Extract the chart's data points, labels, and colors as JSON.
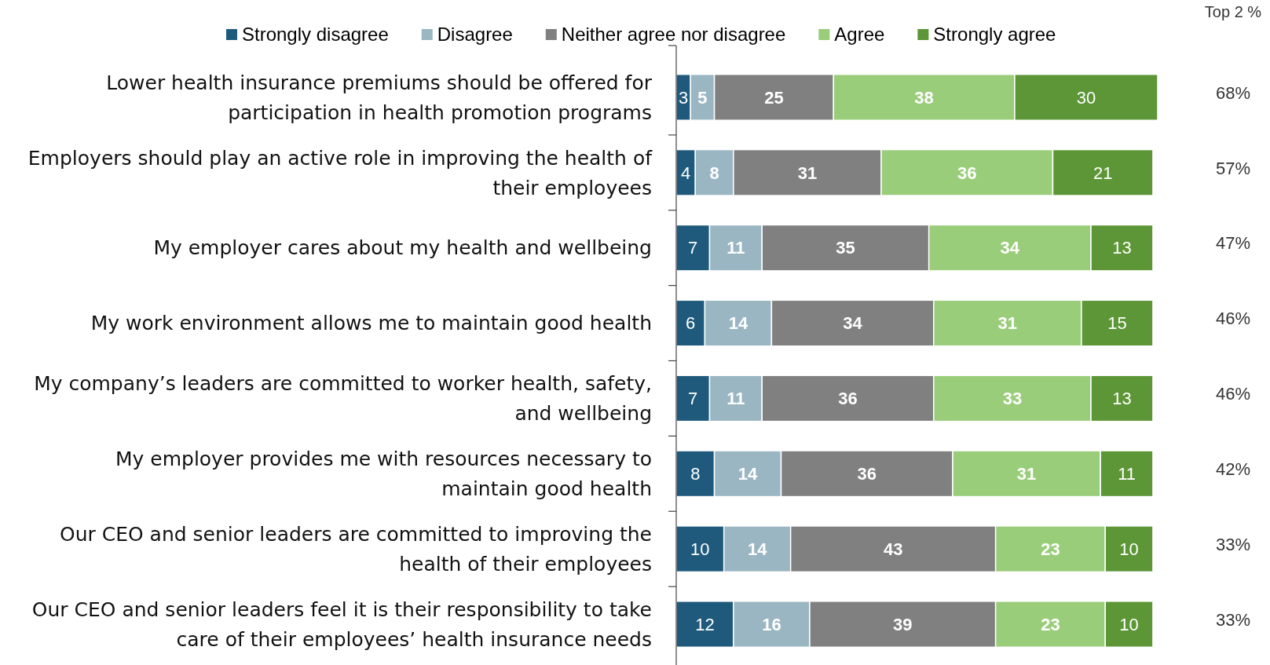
{
  "chart_data": {
    "type": "bar",
    "orientation": "horizontal",
    "stacked": true,
    "data_labels": true,
    "legend": "top",
    "categories": [
      "Lower health insurance premiums should be offered for participation in health promotion programs",
      "Employers should play an active role in improving the health of their employees",
      "My employer cares about my health and wellbeing",
      "My work environment allows me to maintain good health",
      "My company’s leaders are committed to worker health, safety, and wellbeing",
      "My employer provides me with resources necessary to maintain good health",
      "Our CEO and senior leaders are committed to improving the health of their employees",
      "Our CEO and senior leaders feel it is their responsibility to take care of their employees’ health insurance needs"
    ],
    "series": [
      {
        "name": "Strongly disagree",
        "color": "#1f5a7c",
        "values": [
          3,
          4,
          7,
          6,
          7,
          8,
          10,
          12
        ]
      },
      {
        "name": "Disagree",
        "color": "#9ab6c3",
        "values": [
          5,
          8,
          11,
          14,
          11,
          14,
          14,
          16
        ]
      },
      {
        "name": "Neither agree nor disagree",
        "color": "#808080",
        "values": [
          25,
          31,
          35,
          34,
          36,
          36,
          43,
          39
        ]
      },
      {
        "name": "Agree",
        "color": "#9acd7a",
        "values": [
          38,
          36,
          34,
          31,
          33,
          31,
          23,
          23
        ]
      },
      {
        "name": "Strongly agree",
        "color": "#5d9636",
        "values": [
          30,
          21,
          13,
          15,
          13,
          11,
          10,
          10
        ]
      }
    ],
    "annotations": [
      "Top 2 %",
      "68%",
      "57%",
      "47%",
      "46%",
      "46%",
      "42%",
      "33%",
      "33%"
    ]
  }
}
